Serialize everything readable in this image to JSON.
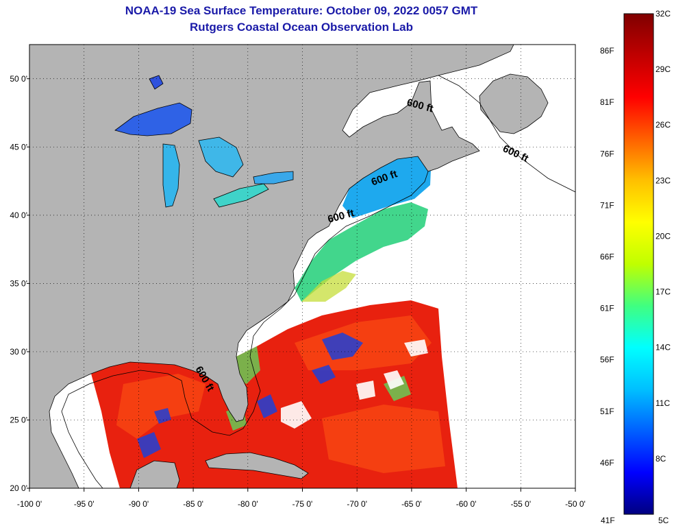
{
  "title": "NOAA-19 Sea Surface Temperature:  October 09, 2022 0057 GMT",
  "subtitle": "Rutgers Coastal Ocean Observation Lab",
  "map": {
    "lon_range": [
      -100,
      -50
    ],
    "lat_range": [
      20,
      52.5
    ],
    "lon_ticks": [
      {
        "value": -100,
        "label": "-100 0'"
      },
      {
        "value": -95,
        "label": "-95 0'"
      },
      {
        "value": -90,
        "label": "-90 0'"
      },
      {
        "value": -85,
        "label": "-85 0'"
      },
      {
        "value": -80,
        "label": "-80 0'"
      },
      {
        "value": -75,
        "label": "-75 0'"
      },
      {
        "value": -70,
        "label": "-70 0'"
      },
      {
        "value": -65,
        "label": "-65 0'"
      },
      {
        "value": -60,
        "label": "-60 0'"
      },
      {
        "value": -55,
        "label": "-55 0'"
      },
      {
        "value": -50,
        "label": "-50 0'"
      }
    ],
    "lat_ticks": [
      {
        "value": 50,
        "label": "50 0'"
      },
      {
        "value": 45,
        "label": "45 0'"
      },
      {
        "value": 40,
        "label": "40 0'"
      },
      {
        "value": 35,
        "label": "35 0'"
      },
      {
        "value": 30,
        "label": "30 0'"
      },
      {
        "value": 25,
        "label": "25 0'"
      },
      {
        "value": 20,
        "label": "20 0'"
      }
    ],
    "grid": "dotted",
    "colors": {
      "land": "#b4b4b4",
      "no_data": "#ffffff",
      "frame": "#000000"
    },
    "contour_labels": [
      {
        "text": "600 ft",
        "lon": -64.3,
        "lat": 47.8,
        "angle": 15
      },
      {
        "text": "600 ft",
        "lon": -55.6,
        "lat": 44.3,
        "angle": 25
      },
      {
        "text": "600 ft",
        "lon": -67.4,
        "lat": 42.5,
        "angle": -20
      },
      {
        "text": "600 ft",
        "lon": -71.4,
        "lat": 39.7,
        "angle": -15
      },
      {
        "text": "600 ft",
        "lon": -84.2,
        "lat": 27.9,
        "angle": 60
      }
    ]
  },
  "colorbar": {
    "top_label": "32C",
    "bottom_label": "5C",
    "bottom_f_label": "41F",
    "celsius_labels": [
      {
        "value": 29,
        "label": "29C"
      },
      {
        "value": 26,
        "label": "26C"
      },
      {
        "value": 23,
        "label": "23C"
      },
      {
        "value": 20,
        "label": "20C"
      },
      {
        "value": 17,
        "label": "17C"
      },
      {
        "value": 14,
        "label": "14C"
      },
      {
        "value": 11,
        "label": "11C"
      },
      {
        "value": 8,
        "label": "8C"
      }
    ],
    "fahrenheit_labels": [
      {
        "value": 86,
        "label": "86F"
      },
      {
        "value": 81,
        "label": "81F"
      },
      {
        "value": 76,
        "label": "76F"
      },
      {
        "value": 71,
        "label": "71F"
      },
      {
        "value": 66,
        "label": "66F"
      },
      {
        "value": 61,
        "label": "61F"
      },
      {
        "value": 56,
        "label": "56F"
      },
      {
        "value": 51,
        "label": "51F"
      },
      {
        "value": 46,
        "label": "46F"
      }
    ],
    "range_c": [
      5,
      32
    ],
    "gradient": [
      "#000080",
      "#0000ff",
      "#0060ff",
      "#00c0ff",
      "#00ffff",
      "#40ff80",
      "#c0ff00",
      "#ffff00",
      "#ffc000",
      "#ff6000",
      "#ff0000",
      "#c00000",
      "#800000"
    ]
  }
}
